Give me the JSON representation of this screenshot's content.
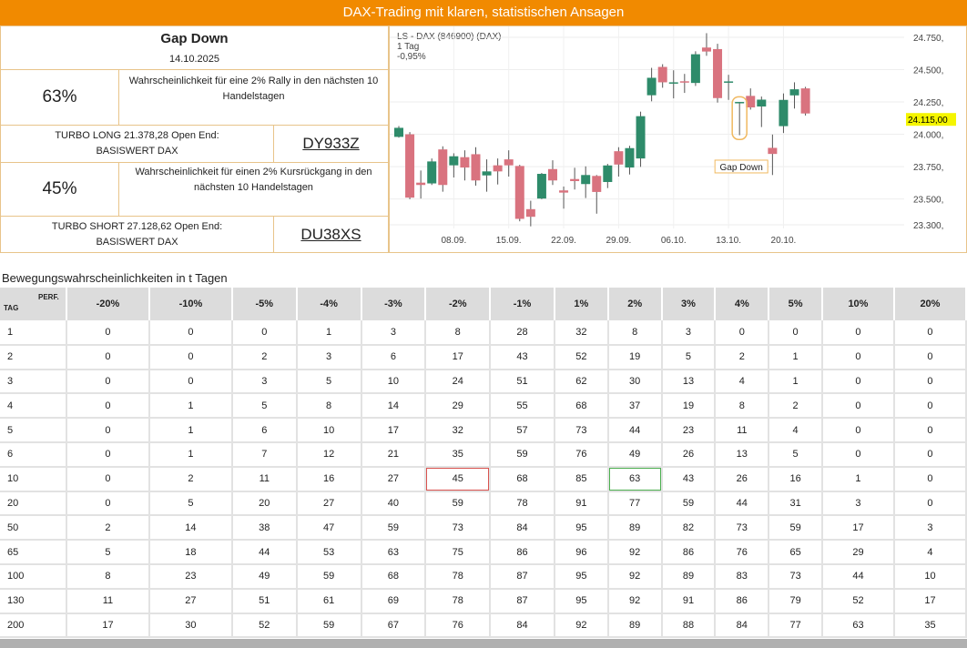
{
  "header": {
    "title": "DAX-Trading mit klaren, statistischen Ansagen"
  },
  "signal": {
    "title": "Gap Down",
    "date": "14.10.2025",
    "long_pct": "63%",
    "long_text": "Wahrscheinlichkeit für eine 2% Rally in den nächsten 10 Handelstagen",
    "long_product": "TURBO LONG 21.378,28 Open End:",
    "long_base": "BASISWERT DAX",
    "long_code": "DY933Z",
    "short_pct": "45%",
    "short_text": "Wahrscheinlichkeit für einen 2% Kursrückgang in den nächsten 10 Handelstagen",
    "short_product": "TURBO SHORT 27.128,62 Open End:",
    "short_base": "BASISWERT DAX",
    "short_code": "DU38XS"
  },
  "chart_data": {
    "type": "candlestick",
    "title": "LS - DAX (846900) (DAX)",
    "interval": "1 Tag",
    "change": "-0,95%",
    "last_price": "24.115,00",
    "annotation": "Gap Down",
    "annotation_index": 31,
    "ylim": [
      23250,
      24800
    ],
    "yticks": [
      24750,
      24500,
      24250,
      24000,
      23750,
      23500,
      23300
    ],
    "ytick_labels": [
      "24.750,",
      "24.500,",
      "24.250,",
      "24.000,",
      "23.750,",
      "23.500,",
      "23.300,"
    ],
    "xticks": [
      {
        "i": 5,
        "label": "08.09."
      },
      {
        "i": 10,
        "label": "15.09."
      },
      {
        "i": 15,
        "label": "22.09."
      },
      {
        "i": 20,
        "label": "29.09."
      },
      {
        "i": 25,
        "label": "06.10."
      },
      {
        "i": 30,
        "label": "13.10."
      },
      {
        "i": 35,
        "label": "20.10."
      }
    ],
    "ohlc": [
      [
        23980,
        24064,
        23974,
        24050
      ],
      [
        24000,
        24017,
        23498,
        23510
      ],
      [
        23626,
        23720,
        23503,
        23608
      ],
      [
        23620,
        23813,
        23608,
        23790
      ],
      [
        23883,
        23907,
        23556,
        23608
      ],
      [
        23760,
        23853,
        23666,
        23830
      ],
      [
        23823,
        23876,
        23643,
        23743
      ],
      [
        23846,
        23900,
        23603,
        23643
      ],
      [
        23682,
        23806,
        23556,
        23713
      ],
      [
        23760,
        23813,
        23612,
        23713
      ],
      [
        23806,
        23876,
        23673,
        23760
      ],
      [
        23755,
        23764,
        23327,
        23346
      ],
      [
        23421,
        23486,
        23288,
        23362
      ],
      [
        23503,
        23701,
        23498,
        23694
      ],
      [
        23731,
        23799,
        23608,
        23643
      ],
      [
        23566,
        23596,
        23425,
        23549
      ],
      [
        23654,
        23741,
        23573,
        23638
      ],
      [
        23615,
        23752,
        23507,
        23685
      ],
      [
        23678,
        23685,
        23386,
        23554
      ],
      [
        23631,
        23771,
        23584,
        23759
      ],
      [
        23869,
        23900,
        23673,
        23766
      ],
      [
        23743,
        23911,
        23689,
        23893
      ],
      [
        23813,
        24175,
        23748,
        24140
      ],
      [
        24302,
        24514,
        24255,
        24437
      ],
      [
        24521,
        24542,
        24360,
        24402
      ],
      [
        24400,
        24495,
        24278,
        24402
      ],
      [
        24410,
        24467,
        24320,
        24400
      ],
      [
        24397,
        24642,
        24374,
        24619
      ],
      [
        24671,
        24782,
        24607,
        24640
      ],
      [
        24659,
        24700,
        24245,
        24280
      ],
      [
        24409,
        24460,
        24266,
        24409
      ],
      [
        24250,
        24250,
        23993,
        24250
      ],
      [
        24297,
        24355,
        24191,
        24208
      ],
      [
        24215,
        24292,
        24056,
        24268
      ],
      [
        23895,
        23998,
        23685,
        23848
      ],
      [
        24063,
        24316,
        24010,
        24266
      ],
      [
        24301,
        24402,
        24199,
        24348
      ],
      [
        24355,
        24367,
        24145,
        24161
      ]
    ],
    "colors": {
      "up": "#2e8b6a",
      "down": "#d9737f"
    }
  },
  "table": {
    "title": "Bewegungswahrscheinlichkeiten in t Tagen",
    "corner_tag": "TAG",
    "corner_perf": "PERF.",
    "columns": [
      "-20%",
      "-10%",
      "-5%",
      "-4%",
      "-3%",
      "-2%",
      "-1%",
      "1%",
      "2%",
      "3%",
      "4%",
      "5%",
      "10%",
      "20%"
    ],
    "rows": [
      [
        "1",
        "0",
        "0",
        "0",
        "1",
        "3",
        "8",
        "28",
        "32",
        "8",
        "3",
        "0",
        "0",
        "0",
        "0"
      ],
      [
        "2",
        "0",
        "0",
        "2",
        "3",
        "6",
        "17",
        "43",
        "52",
        "19",
        "5",
        "2",
        "1",
        "0",
        "0"
      ],
      [
        "3",
        "0",
        "0",
        "3",
        "5",
        "10",
        "24",
        "51",
        "62",
        "30",
        "13",
        "4",
        "1",
        "0",
        "0"
      ],
      [
        "4",
        "0",
        "1",
        "5",
        "8",
        "14",
        "29",
        "55",
        "68",
        "37",
        "19",
        "8",
        "2",
        "0",
        "0"
      ],
      [
        "5",
        "0",
        "1",
        "6",
        "10",
        "17",
        "32",
        "57",
        "73",
        "44",
        "23",
        "11",
        "4",
        "0",
        "0"
      ],
      [
        "6",
        "0",
        "1",
        "7",
        "12",
        "21",
        "35",
        "59",
        "76",
        "49",
        "26",
        "13",
        "5",
        "0",
        "0"
      ],
      [
        "10",
        "0",
        "2",
        "11",
        "16",
        "27",
        "45",
        "68",
        "85",
        "63",
        "43",
        "26",
        "16",
        "1",
        "0"
      ],
      [
        "20",
        "0",
        "5",
        "20",
        "27",
        "40",
        "59",
        "78",
        "91",
        "77",
        "59",
        "44",
        "31",
        "3",
        "0"
      ],
      [
        "50",
        "2",
        "14",
        "38",
        "47",
        "59",
        "73",
        "84",
        "95",
        "89",
        "82",
        "73",
        "59",
        "17",
        "3"
      ],
      [
        "65",
        "5",
        "18",
        "44",
        "53",
        "63",
        "75",
        "86",
        "96",
        "92",
        "86",
        "76",
        "65",
        "29",
        "4"
      ],
      [
        "100",
        "8",
        "23",
        "49",
        "59",
        "68",
        "78",
        "87",
        "95",
        "92",
        "89",
        "83",
        "73",
        "44",
        "10"
      ],
      [
        "130",
        "11",
        "27",
        "51",
        "61",
        "69",
        "78",
        "87",
        "95",
        "92",
        "91",
        "86",
        "79",
        "52",
        "17"
      ],
      [
        "200",
        "17",
        "30",
        "52",
        "59",
        "67",
        "76",
        "84",
        "92",
        "89",
        "88",
        "84",
        "77",
        "63",
        "35"
      ]
    ]
  }
}
